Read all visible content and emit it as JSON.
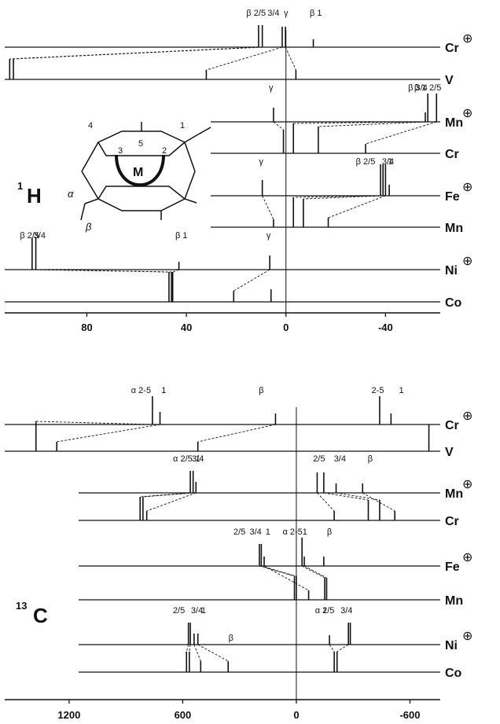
{
  "figure": {
    "panels": [
      "1H",
      "13C"
    ],
    "nucleus_labels": [
      {
        "prefix": "1",
        "main": "H"
      },
      {
        "prefix": "13",
        "main": "C"
      }
    ],
    "charge_symbol": "⊕",
    "molecule": {
      "position_labels": [
        "4",
        "5",
        "1",
        "3",
        "2"
      ],
      "metal": "M",
      "substituent_labels": [
        "α",
        "β"
      ]
    }
  },
  "chart_data": [
    {
      "type": "stick-spectrum",
      "nucleus": "1H",
      "xaxis": {
        "ticks": [
          "80",
          "40",
          "0",
          "-40"
        ],
        "tick_values": [
          80,
          40,
          0,
          -40
        ],
        "range": [
          113,
          -62
        ],
        "direction": "reversed"
      },
      "rows": [
        {
          "label": "Cr",
          "cation": true,
          "group_labels": [
            {
              "text": "β 2/5",
              "x": 12
            },
            {
              "text": "3/4",
              "x": 5
            },
            {
              "text": "γ",
              "x": 0
            },
            {
              "text": "β 1",
              "x": -12
            }
          ],
          "sticks": [
            {
              "x": 11,
              "h": 28
            },
            {
              "x": 9.5,
              "h": 28
            },
            {
              "x": 1.5,
              "h": 26
            },
            {
              "x": 0.2,
              "h": 26
            },
            {
              "x": -11,
              "h": 10
            }
          ]
        },
        {
          "label": "V",
          "cation": false,
          "sticks": [
            {
              "x": 111,
              "h": 26
            },
            {
              "x": 109.5,
              "h": 26
            },
            {
              "x": 32,
              "h": 12
            },
            {
              "x": -4,
              "h": 12
            }
          ]
        },
        {
          "label": "Mn",
          "cation": true,
          "group_labels": [
            {
              "text": "γ",
              "x": 6
            },
            {
              "text": "β 1",
              "x": -54
            },
            {
              "text": "β 3/4",
              "x": -53
            },
            {
              "text": "2/5",
              "x": -60
            }
          ],
          "sticks": [
            {
              "x": 5,
              "h": 18
            },
            {
              "x": -56,
              "h": 12
            },
            {
              "x": -57,
              "h": 36
            },
            {
              "x": -60.5,
              "h": 36
            }
          ]
        },
        {
          "label": "Cr",
          "cation": false,
          "sticks": [
            {
              "x": 1,
              "h": 30
            },
            {
              "x": -3,
              "h": 38
            },
            {
              "x": -13,
              "h": 34
            },
            {
              "x": -32,
              "h": 12
            }
          ]
        },
        {
          "label": "Fe",
          "cation": true,
          "group_labels": [
            {
              "text": "γ",
              "x": 10
            },
            {
              "text": "β 2/5",
              "x": -32
            },
            {
              "text": "3/4",
              "x": -41
            },
            {
              "text": "1",
              "x": -42
            }
          ],
          "sticks": [
            {
              "x": 9.5,
              "h": 20
            },
            {
              "x": -38,
              "h": 40
            },
            {
              "x": -39,
              "h": 40
            },
            {
              "x": -40,
              "h": 40
            },
            {
              "x": -41.5,
              "h": 14
            }
          ]
        },
        {
          "label": "Mn",
          "cation": false,
          "sticks": [
            {
              "x": 5,
              "h": 10
            },
            {
              "x": -3,
              "h": 38
            },
            {
              "x": -7,
              "h": 36
            },
            {
              "x": -17,
              "h": 12
            }
          ]
        },
        {
          "label": "Ni",
          "cation": true,
          "group_labels": [
            {
              "text": "β 2/5",
              "x": 103
            },
            {
              "text": "3/4",
              "x": 99
            },
            {
              "text": "β 1",
              "x": 42
            },
            {
              "text": "γ",
              "x": 7
            }
          ],
          "sticks": [
            {
              "x": 102,
              "h": 40
            },
            {
              "x": 100.5,
              "h": 40
            },
            {
              "x": 43,
              "h": 10
            },
            {
              "x": 6.5,
              "h": 18
            }
          ]
        },
        {
          "label": "Co",
          "cation": false,
          "sticks": [
            {
              "x": 47,
              "h": 38
            },
            {
              "x": 46,
              "h": 38
            },
            {
              "x": 45.5,
              "h": 38
            },
            {
              "x": 21,
              "h": 14
            },
            {
              "x": 6,
              "h": 16
            }
          ]
        }
      ]
    },
    {
      "type": "stick-spectrum",
      "nucleus": "13C",
      "xaxis": {
        "ticks": [
          "1200",
          "600",
          "0",
          "-600"
        ],
        "tick_values": [
          1200,
          600,
          0,
          -600
        ],
        "range": [
          1540,
          -760
        ],
        "direction": "reversed"
      },
      "rows": [
        {
          "label": "Cr",
          "cation": true,
          "group_labels": [
            {
              "text": "α 2-5",
              "x": 820
            },
            {
              "text": "1",
              "x": 700
            },
            {
              "text": "β",
              "x": 185
            },
            {
              "text": "2-5",
              "x": -430
            },
            {
              "text": "1",
              "x": -555
            }
          ],
          "sticks": [
            {
              "x": 760,
              "h": 36
            },
            {
              "x": 720,
              "h": 16
            },
            {
              "x": 110,
              "h": 14
            },
            {
              "x": -440,
              "h": 36
            },
            {
              "x": -500,
              "h": 14
            }
          ]
        },
        {
          "label": "V",
          "cation": false,
          "sticks": [
            {
              "x": 1375,
              "h": 38
            },
            {
              "x": 1265,
              "h": 12
            },
            {
              "x": 520,
              "h": 12
            },
            {
              "x": -700,
              "h": 34
            }
          ]
        },
        {
          "label": "Mn",
          "cation": true,
          "group_labels": [
            {
              "text": "α 2/5",
              "x": 600
            },
            {
              "text": "3/4",
              "x": 520
            },
            {
              "text": "1",
              "x": 520
            },
            {
              "text": "2/5",
              "x": -120
            },
            {
              "text": "3/4",
              "x": -230
            },
            {
              "text": "β",
              "x": -390
            }
          ],
          "sticks": [
            {
              "x": 560,
              "h": 28
            },
            {
              "x": 545,
              "h": 28
            },
            {
              "x": 530,
              "h": 14
            },
            {
              "x": -110,
              "h": 26
            },
            {
              "x": -145,
              "h": 26
            },
            {
              "x": -210,
              "h": 12
            },
            {
              "x": -350,
              "h": 12
            }
          ]
        },
        {
          "label": "Cr",
          "cation": false,
          "sticks": [
            {
              "x": 825,
              "h": 30
            },
            {
              "x": 810,
              "h": 30
            },
            {
              "x": 790,
              "h": 12
            },
            {
              "x": -200,
              "h": 12
            },
            {
              "x": -380,
              "h": 26
            },
            {
              "x": -440,
              "h": 26
            },
            {
              "x": -520,
              "h": 12
            }
          ]
        },
        {
          "label": "Fe",
          "cation": true,
          "group_labels": [
            {
              "text": "2/5",
              "x": 300
            },
            {
              "text": "3/4",
              "x": 215
            },
            {
              "text": "α 2-5",
              "x": 20
            },
            {
              "text": "1",
              "x": 150
            },
            {
              "text": "1",
              "x": -45
            },
            {
              "text": "β",
              "x": -175
            }
          ],
          "sticks": [
            {
              "x": 195,
              "h": 28
            },
            {
              "x": 185,
              "h": 28
            },
            {
              "x": 170,
              "h": 12
            },
            {
              "x": -30,
              "h": 36
            },
            {
              "x": -42,
              "h": 12
            },
            {
              "x": -145,
              "h": 12
            }
          ]
        },
        {
          "label": "Mn",
          "cation": false,
          "sticks": [
            {
              "x": 10,
              "h": 30
            },
            {
              "x": 0,
              "h": 30
            },
            {
              "x": -65,
              "h": 12
            },
            {
              "x": -150,
              "h": 28
            },
            {
              "x": -160,
              "h": 28
            }
          ]
        },
        {
          "label": "Ni",
          "cation": true,
          "group_labels": [
            {
              "text": "2/5",
              "x": 620
            },
            {
              "text": "3/4",
              "x": 525
            },
            {
              "text": "1",
              "x": 490
            },
            {
              "text": "α 2/5",
              "x": -150
            },
            {
              "text": "3/4",
              "x": -265
            },
            {
              "text": "1",
              "x": -150
            }
          ],
          "sticks": [
            {
              "x": 570,
              "h": 28
            },
            {
              "x": 560,
              "h": 28
            },
            {
              "x": 540,
              "h": 14
            },
            {
              "x": 520,
              "h": 14
            },
            {
              "x": -175,
              "h": 12
            },
            {
              "x": -275,
              "h": 28
            },
            {
              "x": -285,
              "h": 28
            }
          ]
        },
        {
          "label": "Co",
          "cation": false,
          "group_labels": [
            {
              "text": "β",
              "x": 345
            }
          ],
          "sticks": [
            {
              "x": 580,
              "h": 26
            },
            {
              "x": 565,
              "h": 26
            },
            {
              "x": 505,
              "h": 14
            },
            {
              "x": 360,
              "h": 14
            },
            {
              "x": -200,
              "h": 26
            },
            {
              "x": -215,
              "h": 26
            }
          ]
        }
      ]
    }
  ]
}
